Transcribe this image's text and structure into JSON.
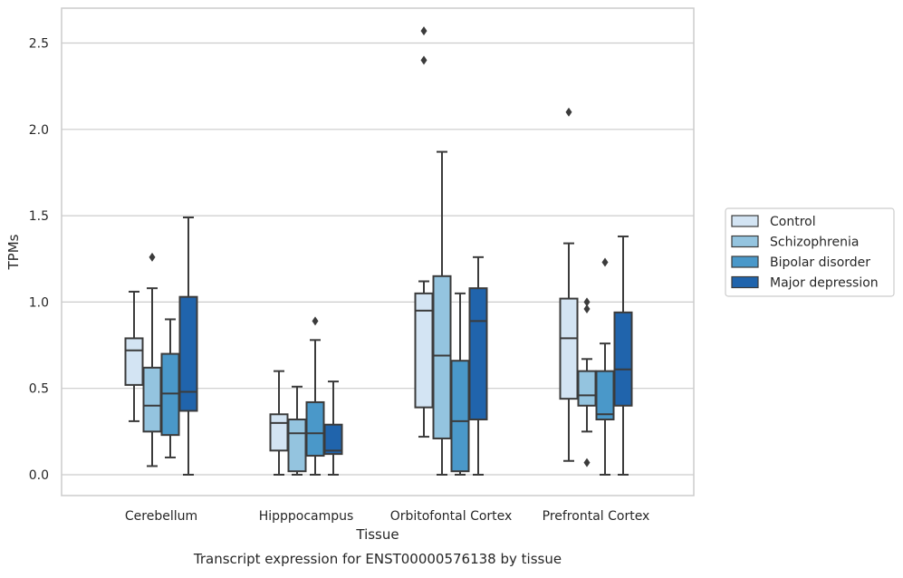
{
  "colors": {
    "grid": "#cccccc",
    "axes": "#cccccc",
    "box_edge": "#3b3b3b",
    "text": "#262626",
    "series": [
      "#d3e4f3",
      "#94c4df",
      "#4a98c9",
      "#2064ac"
    ]
  },
  "chart_data": {
    "type": "box",
    "title": "",
    "caption": "Transcript expression for ENST00000576138 by tissue",
    "xlabel": "Tissue",
    "ylabel": "TPMs",
    "ylim": [
      -0.12,
      2.7
    ],
    "yticks": [
      0.0,
      0.5,
      1.0,
      1.5,
      2.0,
      2.5
    ],
    "ytick_labels": [
      "0.0",
      "0.5",
      "1.0",
      "1.5",
      "2.0",
      "2.5"
    ],
    "grid": "horizontal",
    "legend_position": "right",
    "categories": [
      "Cerebellum",
      "Hipppocampus",
      "Orbitofontal Cortex",
      "Prefrontal Cortex"
    ],
    "series": [
      {
        "name": "Control",
        "color": "#d3e4f3",
        "boxes": [
          {
            "whislo": 0.31,
            "q1": 0.52,
            "med": 0.72,
            "q3": 0.79,
            "whishi": 1.06,
            "fliers": []
          },
          {
            "whislo": 0.0,
            "q1": 0.14,
            "med": 0.3,
            "q3": 0.35,
            "whishi": 0.6,
            "fliers": []
          },
          {
            "whislo": 0.22,
            "q1": 0.39,
            "med": 0.95,
            "q3": 1.05,
            "whishi": 1.12,
            "fliers": [
              2.4,
              2.57
            ]
          },
          {
            "whislo": 0.08,
            "q1": 0.44,
            "med": 0.79,
            "q3": 1.02,
            "whishi": 1.34,
            "fliers": [
              2.1
            ]
          }
        ]
      },
      {
        "name": "Schizophrenia",
        "color": "#94c4df",
        "boxes": [
          {
            "whislo": 0.05,
            "q1": 0.25,
            "med": 0.4,
            "q3": 0.62,
            "whishi": 1.08,
            "fliers": [
              1.26
            ]
          },
          {
            "whislo": 0.0,
            "q1": 0.02,
            "med": 0.24,
            "q3": 0.32,
            "whishi": 0.51,
            "fliers": []
          },
          {
            "whislo": 0.0,
            "q1": 0.21,
            "med": 0.69,
            "q3": 1.15,
            "whishi": 1.87,
            "fliers": []
          },
          {
            "whislo": 0.25,
            "q1": 0.4,
            "med": 0.46,
            "q3": 0.6,
            "whishi": 0.67,
            "fliers": [
              0.96,
              1.0,
              0.07
            ]
          }
        ]
      },
      {
        "name": "Bipolar disorder",
        "color": "#4a98c9",
        "boxes": [
          {
            "whislo": 0.1,
            "q1": 0.23,
            "med": 0.47,
            "q3": 0.7,
            "whishi": 0.9,
            "fliers": []
          },
          {
            "whislo": 0.0,
            "q1": 0.11,
            "med": 0.24,
            "q3": 0.42,
            "whishi": 0.78,
            "fliers": [
              0.89
            ]
          },
          {
            "whislo": 0.0,
            "q1": 0.02,
            "med": 0.31,
            "q3": 0.66,
            "whishi": 1.05,
            "fliers": []
          },
          {
            "whislo": 0.0,
            "q1": 0.32,
            "med": 0.35,
            "q3": 0.6,
            "whishi": 0.76,
            "fliers": [
              1.23
            ]
          }
        ]
      },
      {
        "name": "Major depression",
        "color": "#2064ac",
        "boxes": [
          {
            "whislo": 0.0,
            "q1": 0.37,
            "med": 0.48,
            "q3": 1.03,
            "whishi": 1.49,
            "fliers": []
          },
          {
            "whislo": 0.0,
            "q1": 0.12,
            "med": 0.14,
            "q3": 0.29,
            "whishi": 0.54,
            "fliers": []
          },
          {
            "whislo": 0.0,
            "q1": 0.32,
            "med": 0.89,
            "q3": 1.08,
            "whishi": 1.26,
            "fliers": []
          },
          {
            "whislo": 0.0,
            "q1": 0.4,
            "med": 0.61,
            "q3": 0.94,
            "whishi": 1.38,
            "fliers": []
          }
        ]
      }
    ]
  }
}
